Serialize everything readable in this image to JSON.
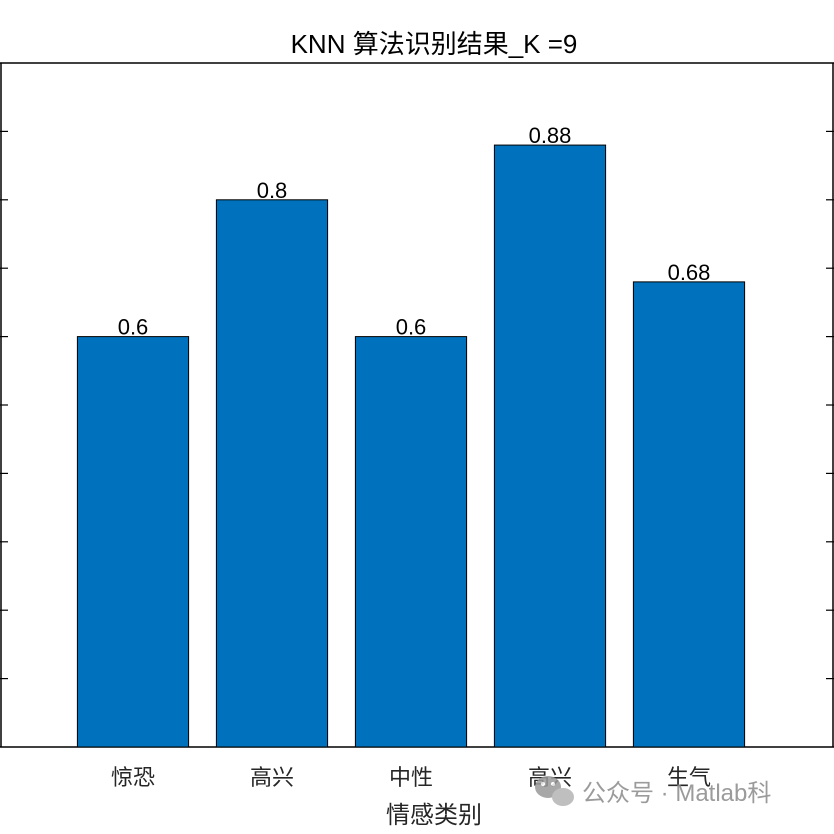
{
  "chart_data": {
    "type": "bar",
    "title": "KNN 算法识别结果_K =9",
    "xlabel": "情感类别",
    "ylabel": "",
    "categories": [
      "惊恐",
      "高兴",
      "中性",
      "高兴",
      "生气"
    ],
    "values": [
      0.6,
      0.8,
      0.6,
      0.88,
      0.68
    ],
    "data_labels": [
      "0.6",
      "0.8",
      "0.6",
      "0.88",
      "0.68"
    ],
    "ylim": [
      0,
      1
    ],
    "y_tick_values": [
      0,
      0.1,
      0.2,
      0.3,
      0.4,
      0.5,
      0.6,
      0.7,
      0.8,
      0.9,
      1.0
    ],
    "grid": false,
    "legend": "none",
    "colors": {
      "bar": "#0072BD",
      "edge": "#000000",
      "axis": "#000000"
    }
  },
  "watermark": {
    "text": "公众号 · Matlab科",
    "icon": "wechat-icon"
  }
}
